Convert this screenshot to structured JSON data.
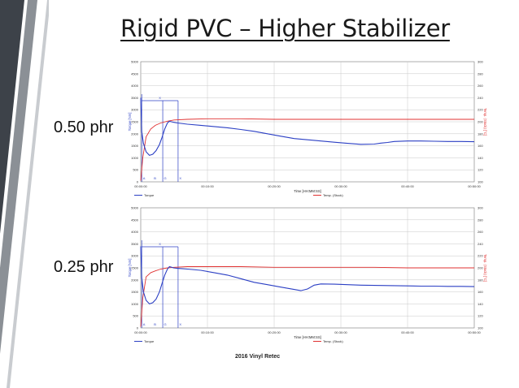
{
  "slide": {
    "title": "Rigid PVC – Higher Stabilizer",
    "footer": "2016 Vinyl Retec",
    "accent_dark": "#3d4249",
    "accent_mid": "#8b9096",
    "accent_light": "#c9ccd0"
  },
  "chart_data": [
    {
      "type": "line",
      "side_label": "0.50 phr",
      "xlabel": "Time [HH:MM:SS]",
      "ylabel": "Torque [Nm]",
      "y2label": "Temp. (Stock) [°C]",
      "x_ticks": [
        "00:00:00",
        "00:10:00",
        "00:20:00",
        "00:30:00",
        "00:40:00",
        "00:50:00"
      ],
      "xlim_min": [
        0,
        50
      ],
      "ylim": [
        0,
        5000
      ],
      "y_ticks": [
        0,
        500,
        1000,
        1500,
        2000,
        2500,
        3000,
        3500,
        4000,
        4500,
        5000
      ],
      "y2lim": [
        100,
        300
      ],
      "y2_ticks": [
        100,
        120,
        140,
        160,
        180,
        200,
        220,
        240,
        260,
        280,
        300
      ],
      "grid": true,
      "legend_position": "bottom",
      "markers": [
        "A",
        "B",
        "G",
        "X"
      ],
      "interval_label": "X",
      "colors": {
        "torque": "#2b3fc4",
        "temp": "#e03030"
      },
      "series": [
        {
          "name": "Torque",
          "x": [
            0,
            0.15,
            0.4,
            0.8,
            1.3,
            1.8,
            2.3,
            2.8,
            3.2,
            3.6,
            4.0,
            4.3,
            4.6,
            4.9,
            5.5,
            7,
            9,
            11,
            13,
            15,
            17,
            19,
            21,
            23,
            25,
            27,
            29,
            31,
            33,
            35,
            36,
            37,
            38,
            40,
            42,
            44,
            46,
            48,
            50
          ],
          "y": [
            3500,
            2100,
            1600,
            1250,
            1100,
            1150,
            1300,
            1550,
            1850,
            2200,
            2450,
            2520,
            2500,
            2480,
            2450,
            2400,
            2350,
            2300,
            2250,
            2180,
            2100,
            2000,
            1900,
            1800,
            1750,
            1700,
            1650,
            1600,
            1560,
            1570,
            1610,
            1640,
            1680,
            1700,
            1700,
            1690,
            1680,
            1680,
            1670
          ]
        },
        {
          "name": "Temp. (Stock)",
          "x": [
            0,
            0.3,
            0.8,
            1.5,
            2.2,
            3,
            4,
            5,
            7,
            10,
            15,
            20,
            25,
            30,
            35,
            40,
            45,
            50
          ],
          "y": [
            102,
            140,
            175,
            188,
            194,
            198,
            201,
            203,
            204,
            205,
            205,
            204,
            204,
            204,
            204,
            204,
            204,
            204
          ]
        }
      ]
    },
    {
      "type": "line",
      "side_label": "0.25 phr",
      "xlabel": "Time [HH:MM:SS]",
      "ylabel": "Torque [Nm]",
      "y2label": "Temp. (Stock) [°C]",
      "x_ticks": [
        "00:00:00",
        "00:10:00",
        "00:20:00",
        "00:30:00",
        "00:40:00",
        "00:50:00"
      ],
      "xlim_min": [
        0,
        50
      ],
      "ylim": [
        0,
        5000
      ],
      "y_ticks": [
        0,
        500,
        1000,
        1500,
        2000,
        2500,
        3000,
        3500,
        4000,
        4500,
        5000
      ],
      "y2lim": [
        100,
        300
      ],
      "y2_ticks": [
        100,
        120,
        140,
        160,
        180,
        200,
        220,
        240,
        260,
        280,
        300
      ],
      "grid": true,
      "legend_position": "bottom",
      "markers": [
        "A",
        "B",
        "G",
        "X"
      ],
      "interval_label": "X",
      "colors": {
        "torque": "#2b3fc4",
        "temp": "#e03030"
      },
      "series": [
        {
          "name": "Torque",
          "x": [
            0,
            0.15,
            0.4,
            0.8,
            1.3,
            1.8,
            2.3,
            2.8,
            3.2,
            3.6,
            4.0,
            4.3,
            4.6,
            4.9,
            5.5,
            7,
            9,
            11,
            13,
            15,
            17,
            19,
            21,
            23,
            24,
            25,
            26,
            27,
            29,
            31,
            33,
            35,
            38,
            40,
            42,
            44,
            46,
            48,
            50
          ],
          "y": [
            3400,
            2100,
            1500,
            1150,
            1000,
            1050,
            1200,
            1500,
            1850,
            2200,
            2450,
            2550,
            2530,
            2500,
            2480,
            2450,
            2400,
            2300,
            2200,
            2050,
            1900,
            1800,
            1700,
            1600,
            1550,
            1620,
            1780,
            1830,
            1820,
            1800,
            1780,
            1770,
            1760,
            1750,
            1740,
            1740,
            1730,
            1730,
            1720
          ]
        },
        {
          "name": "Temp. (Stock)",
          "x": [
            0,
            0.3,
            0.8,
            1.5,
            2.2,
            3,
            4,
            5,
            7,
            10,
            15,
            20,
            25,
            30,
            35,
            40,
            45,
            50
          ],
          "y": [
            102,
            150,
            185,
            192,
            195,
            198,
            200,
            201,
            202,
            202,
            202,
            201,
            201,
            201,
            201,
            200,
            200,
            200
          ]
        }
      ]
    }
  ]
}
